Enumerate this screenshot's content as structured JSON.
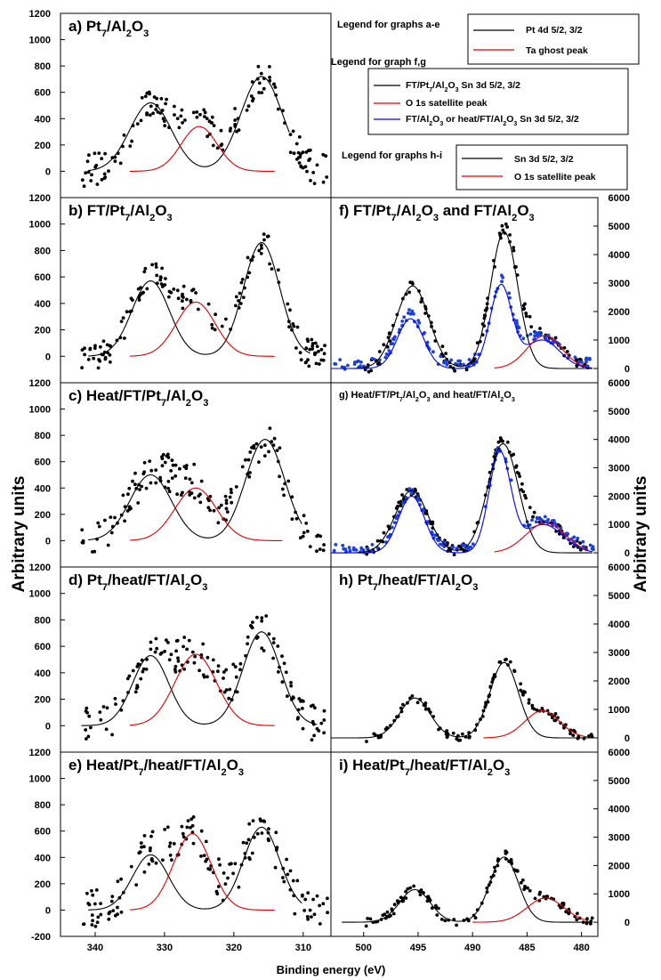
{
  "figure": {
    "ylabel_left": "Arbitrary units",
    "ylabel_right": "Arbitrary units",
    "xlabel": "Binding energy (eV)",
    "x_ticks_left": [
      "340",
      "330",
      "320",
      "310"
    ],
    "x_ticks_right": [
      "500",
      "495",
      "490",
      "485",
      "480"
    ],
    "y_ticks_left": [
      "-200",
      "0",
      "200",
      "400",
      "600",
      "800",
      "1000",
      "1200"
    ],
    "y_ticks_right": [
      "0",
      "1000",
      "2000",
      "3000",
      "4000",
      "5000",
      "6000"
    ]
  },
  "legends": {
    "ae": {
      "heading": "Legend for graphs a-e",
      "items": [
        {
          "label": "Pt 4d 5/2, 3/2",
          "color": "#000000"
        },
        {
          "label": "Ta ghost peak",
          "color": "#e00000"
        }
      ]
    },
    "fg": {
      "heading": "Legend for graph f,g",
      "items": [
        {
          "label": "FT/Pt7/Al2O3 Sn 3d 5/2, 3/2",
          "color": "#000000"
        },
        {
          "label": "O 1s satellite peak",
          "color": "#e00000"
        },
        {
          "label": "FT/Al2O3 or heat/FT/Al2O3 Sn 3d 5/2, 3/2",
          "color": "#0000ee"
        }
      ]
    },
    "hi": {
      "heading": "Legend for graphs h-i",
      "items": [
        {
          "label": "Sn 3d 5/2, 3/2",
          "color": "#000000"
        },
        {
          "label": "O 1s satellite peak",
          "color": "#e00000"
        }
      ]
    }
  },
  "chart_data": [
    {
      "id": "a",
      "type": "scatter",
      "title": "a) Pt7/Al2O3",
      "xlim": [
        345,
        306
      ],
      "ylim": [
        -200,
        1200
      ],
      "series": [
        {
          "name": "Pt 4d 5/2, 3/2",
          "peaks": [
            [
              332,
              520,
              3.0
            ],
            [
              316,
              720,
              3.0
            ]
          ],
          "range": [
            341,
            312
          ]
        },
        {
          "name": "Ta ghost peak",
          "peaks": [
            [
              325,
              340,
              2.6
            ]
          ],
          "range": [
            335,
            314
          ]
        }
      ],
      "noise": 130
    },
    {
      "id": "b",
      "type": "scatter",
      "title": "b) FT/Pt7/Al2O3",
      "xlim": [
        345,
        306
      ],
      "ylim": [
        -200,
        1200
      ],
      "series": [
        {
          "name": "Pt 4d 5/2, 3/2",
          "peaks": [
            [
              332,
              570,
              2.7
            ],
            [
              316,
              860,
              2.6
            ]
          ],
          "range": [
            341,
            309
          ]
        },
        {
          "name": "Ta ghost peak",
          "peaks": [
            [
              325.5,
              410,
              2.8
            ]
          ],
          "range": [
            335,
            314
          ]
        }
      ],
      "noise": 110
    },
    {
      "id": "c",
      "type": "scatter",
      "title": "c) Heat/FT/Pt7/Al2O3",
      "xlim": [
        345,
        306
      ],
      "ylim": [
        -200,
        1200
      ],
      "series": [
        {
          "name": "Pt 4d 5/2, 3/2",
          "peaks": [
            [
              332,
              500,
              3.0
            ],
            [
              315.5,
              770,
              2.8
            ]
          ],
          "range": [
            341,
            310
          ]
        },
        {
          "name": "Ta ghost peak",
          "peaks": [
            [
              325.5,
              400,
              3.0
            ]
          ],
          "range": [
            335,
            313
          ]
        }
      ],
      "noise": 140
    },
    {
      "id": "d",
      "type": "scatter",
      "title": "d) Pt7/heat/FT/Al2O3",
      "xlim": [
        345,
        306
      ],
      "ylim": [
        -200,
        1200
      ],
      "series": [
        {
          "name": "Pt 4d 5/2, 3/2",
          "peaks": [
            [
              332,
              530,
              2.6
            ],
            [
              316,
              710,
              2.7
            ]
          ],
          "range": [
            342,
            308
          ]
        },
        {
          "name": "Ta ghost peak",
          "peaks": [
            [
              325.5,
              540,
              3.0
            ]
          ],
          "range": [
            335,
            314
          ]
        }
      ],
      "noise": 140
    },
    {
      "id": "e",
      "type": "scatter",
      "title": "e) Heat/Pt7/heat/FT/Al2O3",
      "xlim": [
        345,
        306
      ],
      "ylim": [
        -200,
        1200
      ],
      "series": [
        {
          "name": "Pt 4d 5/2, 3/2",
          "peaks": [
            [
              332,
              420,
              2.6
            ],
            [
              316,
              630,
              2.6
            ]
          ],
          "range": [
            341,
            310
          ]
        },
        {
          "name": "Ta ghost peak",
          "peaks": [
            [
              326,
              580,
              2.7
            ]
          ],
          "range": [
            335,
            314
          ]
        }
      ],
      "noise": 150
    },
    {
      "id": "f",
      "type": "scatter",
      "title": "f) FT/Pt7/Al2O3 and FT/Al2O3",
      "xlim": [
        503,
        478.5
      ],
      "ylim": [
        -500,
        6000
      ],
      "series": [
        {
          "name": "FT/Pt7/Al2O3 Sn 3d 5/2, 3/2",
          "peaks": [
            [
              495.5,
              2900,
              1.5
            ],
            [
              487.1,
              4800,
              1.25
            ]
          ],
          "range": [
            503,
            479
          ]
        },
        {
          "name": "FT/Al2O3 or heat/FT/Al2O3 Sn 3d 5/2, 3/2",
          "peaks": [
            [
              495.7,
              1750,
              1.2
            ],
            [
              487.4,
              2900,
              1.0
            ],
            [
              483.6,
              1000,
              1.6
            ]
          ],
          "range": [
            503,
            479
          ]
        },
        {
          "name": "O 1s satellite peak",
          "peaks": [
            [
              483.4,
              1150,
              1.6
            ]
          ],
          "range": [
            488,
            479.5
          ]
        }
      ],
      "noise": 230
    },
    {
      "id": "g",
      "type": "scatter",
      "title": "g) Heat/FT/Pt7/Al2O3 and heat/FT/Al2O3",
      "xlim": [
        503,
        478.5
      ],
      "ylim": [
        -500,
        6000
      ],
      "series": [
        {
          "name": "FT/Pt7/Al2O3 Sn 3d 5/2, 3/2",
          "peaks": [
            [
              495.6,
              2200,
              1.5
            ],
            [
              487.2,
              3850,
              1.4
            ]
          ],
          "range": [
            503,
            479
          ]
        },
        {
          "name": "FT/Al2O3 or heat/FT/Al2O3 Sn 3d 5/2, 3/2",
          "peaks": [
            [
              495.6,
              2000,
              1.2
            ],
            [
              487.5,
              3500,
              1.0
            ],
            [
              483.5,
              1000,
              1.8
            ]
          ],
          "range": [
            503,
            479
          ]
        },
        {
          "name": "O 1s satellite peak",
          "peaks": [
            [
              483.3,
              1050,
              1.8
            ]
          ],
          "range": [
            488,
            479.5
          ]
        }
      ],
      "noise": 180
    },
    {
      "id": "h",
      "type": "scatter",
      "title": "h) Pt7/heat/FT/Al2O3",
      "xlim": [
        503,
        478.5
      ],
      "ylim": [
        -500,
        6000
      ],
      "series": [
        {
          "name": "Sn 3d 5/2, 3/2",
          "peaks": [
            [
              495.3,
              1400,
              1.4
            ],
            [
              487.1,
              2650,
              1.3
            ]
          ],
          "range": [
            503,
            479
          ]
        },
        {
          "name": "O 1s satellite peak",
          "peaks": [
            [
              483.6,
              950,
              1.6
            ]
          ],
          "range": [
            489,
            479.5
          ]
        }
      ],
      "noise": 140
    },
    {
      "id": "i",
      "type": "scatter",
      "title": "i) Heat/Pt7/heat/FT/Al2O3",
      "xlim": [
        503,
        478.5
      ],
      "ylim": [
        -500,
        6000
      ],
      "series": [
        {
          "name": "Sn 3d 5/2, 3/2",
          "peaks": [
            [
              495.3,
              1150,
              1.4
            ],
            [
              487.1,
              2300,
              1.3
            ]
          ],
          "range": [
            502,
            479
          ]
        },
        {
          "name": "O 1s satellite peak",
          "peaks": [
            [
              483.3,
              850,
              1.7
            ]
          ],
          "range": [
            490,
            479.5
          ]
        }
      ],
      "noise": 150
    }
  ]
}
